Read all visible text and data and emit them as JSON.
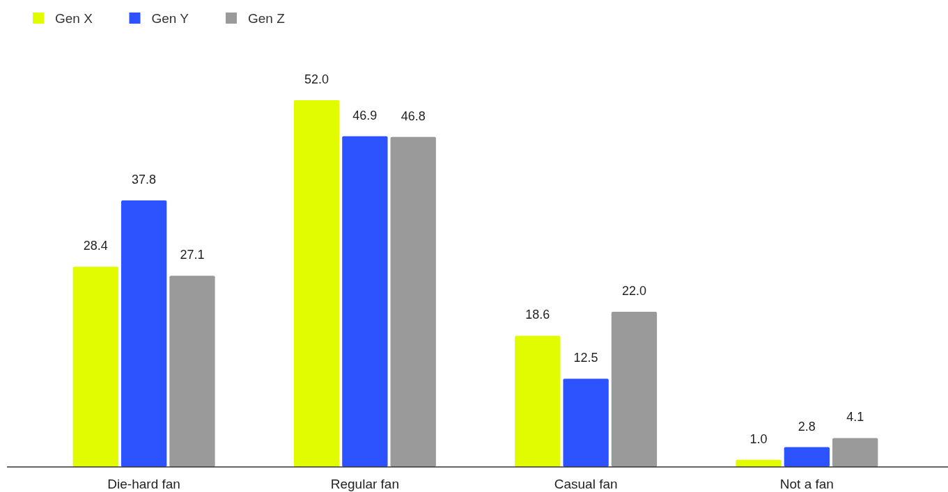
{
  "chart_data": {
    "type": "bar",
    "categories": [
      "Die-hard fan",
      "Regular fan",
      "Casual fan",
      "Not a fan"
    ],
    "series": [
      {
        "name": "Gen X",
        "color": "#e2fc00",
        "values": [
          28.4,
          52.0,
          18.6,
          1.0
        ],
        "value_labels": [
          "28.4",
          "52.0",
          "18.6",
          "1.0"
        ]
      },
      {
        "name": "Gen Y",
        "color": "#2d52ff",
        "values": [
          37.8,
          46.9,
          12.5,
          2.8
        ],
        "value_labels": [
          "37.8",
          "46.9",
          "12.5",
          "2.8"
        ]
      },
      {
        "name": "Gen Z",
        "color": "#9a9a9a",
        "values": [
          27.1,
          46.8,
          22.0,
          4.1
        ],
        "value_labels": [
          "27.1",
          "46.8",
          "22.0",
          "4.1"
        ]
      }
    ],
    "legend": "top left",
    "grid": false
  }
}
